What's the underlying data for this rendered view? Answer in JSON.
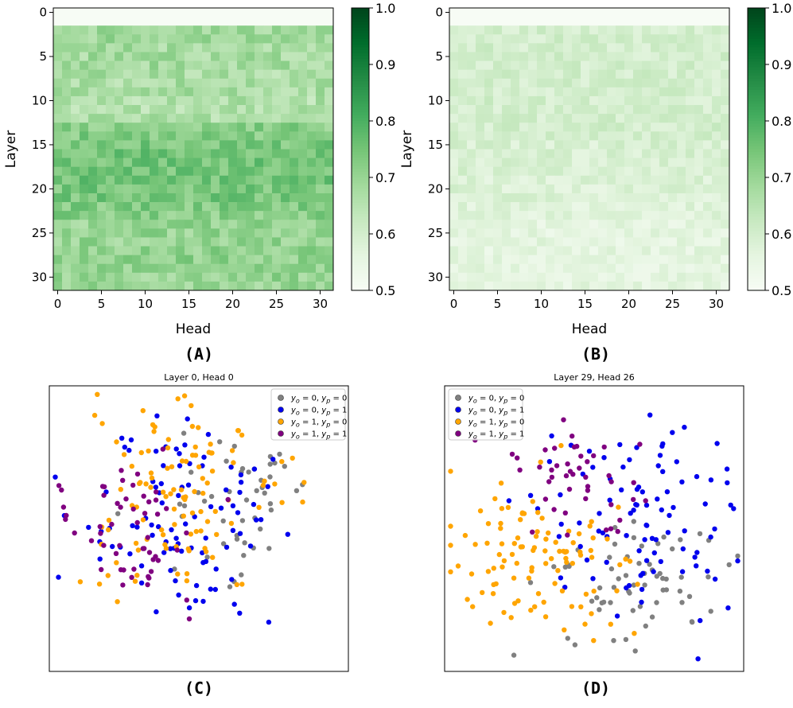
{
  "chart_data": [
    {
      "panel": "(A)",
      "type": "heatmap",
      "title": "",
      "xlabel": "Head",
      "ylabel": "Layer",
      "rows": 32,
      "cols": 32,
      "xticks": [
        0,
        5,
        10,
        15,
        20,
        25,
        30
      ],
      "yticks": [
        0,
        5,
        10,
        15,
        20,
        25,
        30
      ],
      "colorbar": {
        "min": 0.5,
        "max": 1.0,
        "ticks": [
          "0.5",
          "0.6",
          "0.7",
          "0.8",
          "0.9",
          "1.0"
        ],
        "colormap": "Greens"
      },
      "row_levels": [
        0.5,
        0.5,
        0.68,
        0.69,
        0.68,
        0.68,
        0.68,
        0.67,
        0.67,
        0.67,
        0.66,
        0.66,
        0.66,
        0.72,
        0.73,
        0.74,
        0.75,
        0.75,
        0.75,
        0.75,
        0.74,
        0.74,
        0.73,
        0.72,
        0.7,
        0.7,
        0.7,
        0.71,
        0.71,
        0.71,
        0.7,
        0.7
      ],
      "variation": 0.045,
      "seed": 7
    },
    {
      "panel": "(B)",
      "type": "heatmap",
      "title": "",
      "xlabel": "Head",
      "ylabel": "Layer",
      "rows": 32,
      "cols": 32,
      "xticks": [
        0,
        5,
        10,
        15,
        20,
        25,
        30
      ],
      "yticks": [
        0,
        5,
        10,
        15,
        20,
        25,
        30
      ],
      "colorbar": {
        "min": 0.5,
        "max": 1.0,
        "ticks": [
          "0.5",
          "0.6",
          "0.7",
          "0.8",
          "0.9",
          "1.0"
        ],
        "colormap": "Greens"
      },
      "row_levels": [
        0.5,
        0.5,
        0.6,
        0.6,
        0.6,
        0.6,
        0.6,
        0.6,
        0.6,
        0.6,
        0.6,
        0.6,
        0.6,
        0.6,
        0.6,
        0.59,
        0.59,
        0.59,
        0.59,
        0.58,
        0.58,
        0.58,
        0.57,
        0.57,
        0.56,
        0.56,
        0.56,
        0.56,
        0.56,
        0.56,
        0.56,
        0.56
      ],
      "variation": 0.03,
      "seed": 11
    },
    {
      "panel": "(C)",
      "type": "scatter",
      "title": "Layer 0, Head 0",
      "xlabel": "",
      "ylabel": "",
      "legend_position": "top-right",
      "legend": [
        {
          "label": "y_o = 0, y_p = 0",
          "color": "#808080"
        },
        {
          "label": "y_o = 0, y_p = 1",
          "color": "#0000ee"
        },
        {
          "label": "y_o = 1, y_p = 0",
          "color": "#ffa500"
        },
        {
          "label": "y_o = 1, y_p = 1",
          "color": "#800080"
        }
      ],
      "clusters": [
        {
          "class": 0,
          "n": 48,
          "center": [
            0.64,
            0.42
          ],
          "spread": [
            0.11,
            0.12
          ],
          "seed": 21
        },
        {
          "class": 1,
          "n": 95,
          "center": [
            0.43,
            0.47
          ],
          "spread": [
            0.18,
            0.16
          ],
          "seed": 22
        },
        {
          "class": 2,
          "n": 110,
          "center": [
            0.41,
            0.38
          ],
          "spread": [
            0.18,
            0.17
          ],
          "seed": 23
        },
        {
          "class": 3,
          "n": 55,
          "center": [
            0.27,
            0.5
          ],
          "spread": [
            0.12,
            0.13
          ],
          "seed": 24
        }
      ]
    },
    {
      "panel": "(D)",
      "type": "scatter",
      "title": "Layer 29, Head 26",
      "xlabel": "",
      "ylabel": "",
      "legend_position": "top-left",
      "legend": [
        {
          "label": "y_o = 0, y_p = 0",
          "color": "#808080"
        },
        {
          "label": "y_o = 0, y_p = 1",
          "color": "#0000ee"
        },
        {
          "label": "y_o = 1, y_p = 0",
          "color": "#ffa500"
        },
        {
          "label": "y_o = 1, y_p = 1",
          "color": "#800080"
        }
      ],
      "clusters": [
        {
          "class": 0,
          "n": 65,
          "center": [
            0.62,
            0.68
          ],
          "spread": [
            0.16,
            0.12
          ],
          "seed": 31
        },
        {
          "class": 1,
          "n": 95,
          "center": [
            0.67,
            0.42
          ],
          "spread": [
            0.16,
            0.18
          ],
          "seed": 32
        },
        {
          "class": 2,
          "n": 105,
          "center": [
            0.33,
            0.61
          ],
          "spread": [
            0.16,
            0.13
          ],
          "seed": 33
        },
        {
          "class": 3,
          "n": 45,
          "center": [
            0.4,
            0.32
          ],
          "spread": [
            0.12,
            0.09
          ],
          "seed": 34
        }
      ]
    }
  ]
}
